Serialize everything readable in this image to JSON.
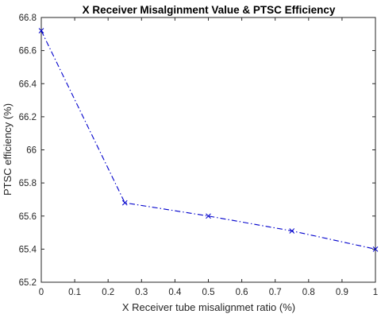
{
  "chart_data": {
    "type": "line",
    "title": "X  Receiver Misalginment Value & PTSC Efficiency",
    "xlabel": "X  Receiver tube misalignmet ratio (%)",
    "ylabel": "PTSC efficiency (%)",
    "xlim": [
      0,
      1
    ],
    "ylim": [
      65.2,
      66.8
    ],
    "xticks": [
      0,
      0.1,
      0.2,
      0.3,
      0.4,
      0.5,
      0.6,
      0.7,
      0.8,
      0.9,
      1
    ],
    "xtick_labels": [
      "0",
      "0.1",
      "0.2",
      "0.3",
      "0.4",
      "0.5",
      "0.6",
      "0.7",
      "0.8",
      "0.9",
      "1"
    ],
    "yticks": [
      65.2,
      65.4,
      65.6,
      65.8,
      66,
      66.2,
      66.4,
      66.6,
      66.8
    ],
    "ytick_labels": [
      "65.2",
      "65.4",
      "65.6",
      "65.8",
      "66",
      "66.2",
      "66.4",
      "66.6",
      "66.8"
    ],
    "grid": false,
    "series": [
      {
        "x": [
          0,
          0.25,
          0.5,
          0.75,
          1
        ],
        "y": [
          66.72,
          65.68,
          65.6,
          65.51,
          65.4
        ],
        "color": "#0000cc",
        "line_style": "dash-dot",
        "marker": "x"
      }
    ]
  }
}
